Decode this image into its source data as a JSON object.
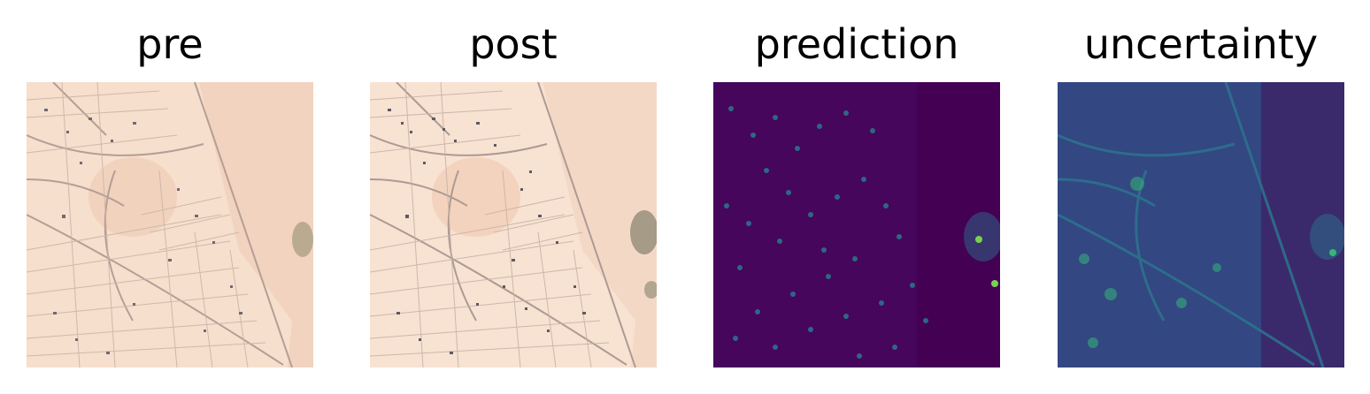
{
  "panels": [
    {
      "title": "pre",
      "image": "satellite-pre-event",
      "palette": {
        "ground": "#f6dfcc",
        "roads": "#b49e96",
        "roofs": "#6f6a72",
        "veg": "#8c8a6a"
      }
    },
    {
      "title": "post",
      "image": "satellite-post-event",
      "palette": {
        "ground": "#f8e2d2",
        "roads": "#ad9a94",
        "roofs": "#5e5a64",
        "veg": "#6f735c"
      }
    },
    {
      "title": "prediction",
      "image": "prediction-heatmap",
      "palette": {
        "low": "#440154",
        "mid": "#2a788e",
        "high": "#7ad151"
      }
    },
    {
      "title": "uncertainty",
      "image": "uncertainty-heatmap",
      "palette": {
        "low": "#3b2a6b",
        "mid": "#2c728e",
        "high": "#35b779"
      }
    }
  ]
}
